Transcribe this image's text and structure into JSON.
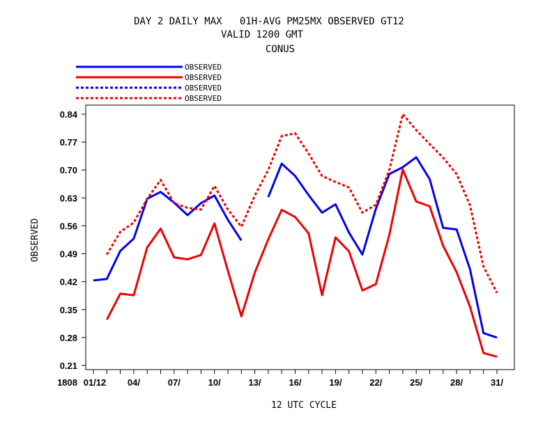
{
  "chart_data": {
    "type": "line",
    "title_lines": [
      "DAY 2 DAILY MAX   01H-AVG PM25MX OBSERVED GT12",
      "VALID 1200 GMT",
      "CONUS"
    ],
    "xlabel": "12 UTC CYCLE",
    "ylabel": "OBSERVED",
    "x_tick_labels": [
      "01/12",
      "04/",
      "07/",
      "10/",
      "13/",
      "16/",
      "19/",
      "22/",
      "25/",
      "28/",
      "31/"
    ],
    "x_tick_days": [
      1,
      4,
      7,
      10,
      13,
      16,
      19,
      22,
      25,
      28,
      31
    ],
    "x_extra_label": "1808",
    "y_ticks": [
      "0.21",
      "0.28",
      "0.35",
      "0.42",
      "0.49",
      "0.56",
      "0.63",
      "0.70",
      "0.77",
      "0.84"
    ],
    "xlim": [
      0.9,
      31.4
    ],
    "ylim": [
      0.21,
      0.85
    ],
    "series": [
      {
        "name": "OBSERVED",
        "color": "#0000ee",
        "dash": "solid",
        "values": [
          [
            1,
            0.423
          ],
          [
            2,
            0.427
          ],
          [
            3,
            0.497
          ],
          [
            4,
            0.528
          ],
          [
            5,
            0.628
          ],
          [
            6,
            0.645
          ],
          [
            7,
            0.618
          ],
          [
            8,
            0.587
          ],
          [
            9,
            0.617
          ],
          [
            10,
            0.636
          ],
          [
            11,
            0.575
          ],
          [
            12,
            0.523
          ],
          [
            14,
            0.632
          ],
          [
            15,
            0.716
          ],
          [
            16,
            0.685
          ],
          [
            17,
            0.637
          ],
          [
            18,
            0.593
          ],
          [
            19,
            0.614
          ],
          [
            20,
            0.543
          ],
          [
            21,
            0.488
          ],
          [
            22,
            0.603
          ],
          [
            23,
            0.69
          ],
          [
            24,
            0.707
          ],
          [
            25,
            0.732
          ],
          [
            26,
            0.677
          ],
          [
            27,
            0.555
          ],
          [
            28,
            0.551
          ],
          [
            29,
            0.451
          ],
          [
            30,
            0.291
          ],
          [
            31,
            0.28
          ]
        ]
      },
      {
        "name": "OBSERVED",
        "color": "#ee0000",
        "dash": "solid",
        "values": [
          [
            2,
            0.325
          ],
          [
            3,
            0.39
          ],
          [
            4,
            0.386
          ],
          [
            5,
            0.506
          ],
          [
            6,
            0.553
          ],
          [
            7,
            0.481
          ],
          [
            8,
            0.476
          ],
          [
            9,
            0.487
          ],
          [
            10,
            0.566
          ],
          [
            11,
            0.447
          ],
          [
            12,
            0.333
          ],
          [
            13,
            0.443
          ],
          [
            14,
            0.526
          ],
          [
            15,
            0.6
          ],
          [
            16,
            0.582
          ],
          [
            17,
            0.541
          ],
          [
            18,
            0.386
          ],
          [
            19,
            0.531
          ],
          [
            20,
            0.496
          ],
          [
            21,
            0.398
          ],
          [
            22,
            0.414
          ],
          [
            23,
            0.537
          ],
          [
            24,
            0.701
          ],
          [
            25,
            0.621
          ],
          [
            26,
            0.609
          ],
          [
            27,
            0.51
          ],
          [
            28,
            0.444
          ],
          [
            29,
            0.357
          ],
          [
            30,
            0.241
          ],
          [
            31,
            0.232
          ]
        ]
      },
      {
        "name": "OBSERVED",
        "color": "#0000ee",
        "dash": "dashed",
        "values": []
      },
      {
        "name": "OBSERVED",
        "color": "#ee0000",
        "dash": "dashed",
        "values": [
          [
            2,
            0.488
          ],
          [
            3,
            0.545
          ],
          [
            4,
            0.568
          ],
          [
            5,
            0.628
          ],
          [
            6,
            0.675
          ],
          [
            7,
            0.617
          ],
          [
            8,
            0.605
          ],
          [
            9,
            0.601
          ],
          [
            10,
            0.66
          ],
          [
            11,
            0.601
          ],
          [
            12,
            0.558
          ],
          [
            13,
            0.636
          ],
          [
            14,
            0.7
          ],
          [
            15,
            0.785
          ],
          [
            16,
            0.792
          ],
          [
            17,
            0.741
          ],
          [
            18,
            0.685
          ],
          [
            19,
            0.67
          ],
          [
            20,
            0.656
          ],
          [
            21,
            0.593
          ],
          [
            22,
            0.613
          ],
          [
            23,
            0.7
          ],
          [
            24,
            0.84
          ],
          [
            25,
            0.8
          ],
          [
            26,
            0.765
          ],
          [
            27,
            0.731
          ],
          [
            28,
            0.69
          ],
          [
            29,
            0.611
          ],
          [
            30,
            0.458
          ],
          [
            31,
            0.392
          ]
        ]
      }
    ],
    "grid": false,
    "legend_position": "top-left above plot"
  }
}
